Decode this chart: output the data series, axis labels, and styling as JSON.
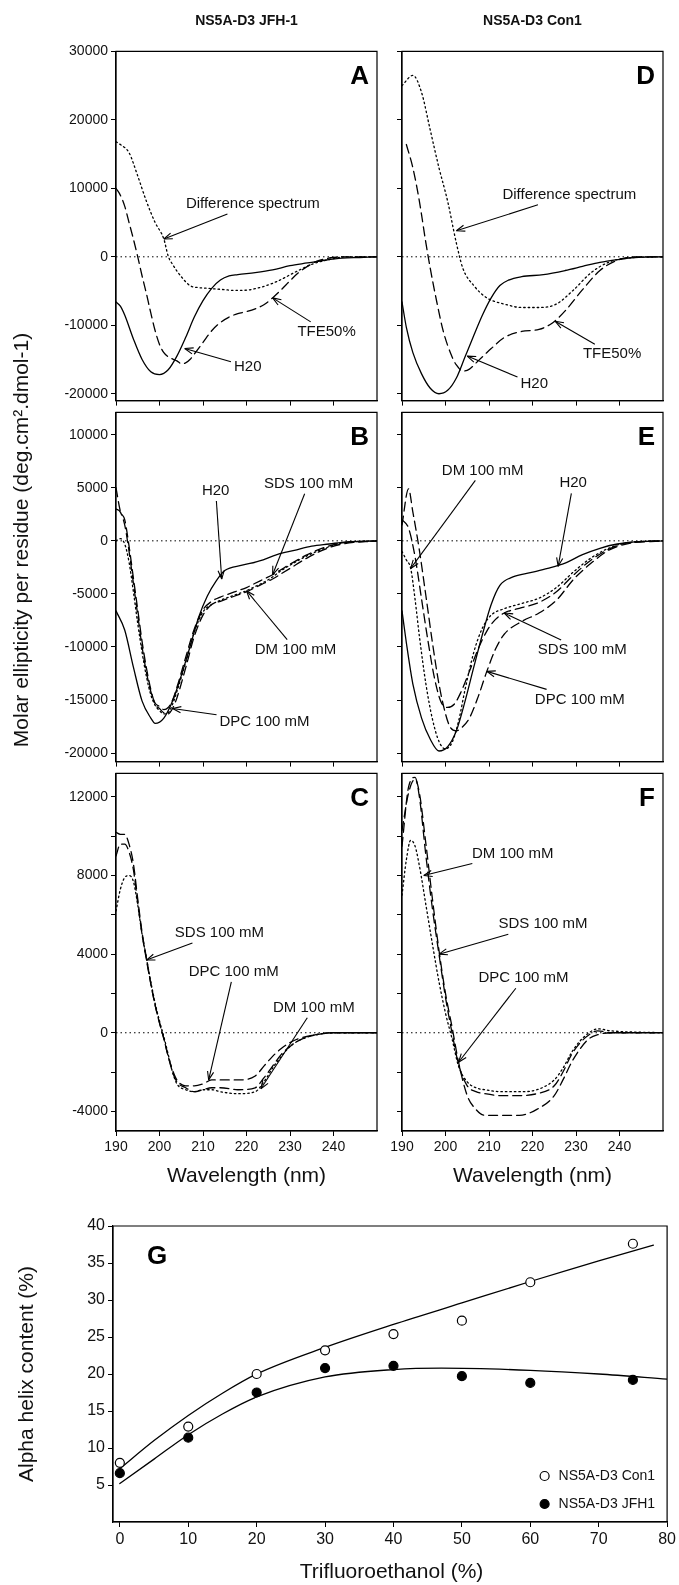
{
  "chart_data": [
    {
      "type": "line",
      "title": "NS5A-D3 JFH-1",
      "xlim": [
        190,
        250
      ],
      "xticks": [
        190,
        200,
        210,
        220,
        230,
        240
      ],
      "ylim": [
        -21000,
        30000
      ],
      "yticks": [
        -20000,
        -10000,
        0,
        10000,
        20000,
        30000
      ],
      "tick_labels": "y",
      "marker": "none",
      "ref_lines": [
        {
          "axis": "y",
          "value": 0,
          "color": "#000000",
          "line_style": "dotted"
        }
      ],
      "annotations": [
        "A",
        {
          "text": "Difference spectrum",
          "x": 201,
          "y": 2600
        },
        {
          "text": "TFE50%",
          "x": 226,
          "y": -6000
        },
        {
          "text": "H20",
          "x": 205.8,
          "y": -13400
        }
      ],
      "series": [
        {
          "color": "#000000",
          "line_style": "solid",
          "x": [
            190,
            191,
            192,
            194,
            196,
            198,
            200,
            202,
            204,
            206,
            208,
            210,
            212,
            214,
            216,
            218,
            222,
            226,
            230,
            234,
            238,
            242,
            246,
            250
          ],
          "values": [
            -6600,
            -7200,
            -8500,
            -12000,
            -15000,
            -16800,
            -17200,
            -16500,
            -14500,
            -11800,
            -8800,
            -6400,
            -4600,
            -3400,
            -2800,
            -2600,
            -2300,
            -1900,
            -1300,
            -900,
            -500,
            -200,
            -100,
            0
          ]
        },
        {
          "color": "#000000",
          "line_style": "dashed",
          "x": [
            190,
            191,
            192,
            193,
            194,
            195,
            196,
            197,
            198,
            199,
            200,
            201,
            202,
            204,
            205,
            206,
            207,
            208,
            210,
            212,
            214,
            216,
            218,
            220,
            222,
            224,
            226,
            228,
            230,
            232,
            234,
            236,
            238,
            240,
            244,
            250
          ],
          "values": [
            10000,
            9000,
            7400,
            5000,
            2600,
            0,
            -2800,
            -5400,
            -8200,
            -10800,
            -12800,
            -14000,
            -14600,
            -15200,
            -15600,
            -15500,
            -15000,
            -14200,
            -12500,
            -10800,
            -9600,
            -8800,
            -8300,
            -8000,
            -7600,
            -7000,
            -6000,
            -4800,
            -3500,
            -2300,
            -1400,
            -700,
            -300,
            -100,
            0,
            0
          ]
        },
        {
          "color": "#000000",
          "line_style": "dotted",
          "x": [
            190,
            191,
            193,
            195,
            197,
            199,
            201,
            202,
            203,
            205,
            207,
            209,
            211,
            213,
            215,
            217,
            219,
            223,
            227,
            231,
            235,
            239,
            243,
            250
          ],
          "values": [
            16800,
            16400,
            15200,
            11800,
            8100,
            5000,
            2600,
            100,
            -1100,
            -2900,
            -4200,
            -4500,
            -4600,
            -4700,
            -4800,
            -4900,
            -4900,
            -4500,
            -3600,
            -2300,
            -1100,
            -400,
            0,
            0
          ]
        }
      ]
    },
    {
      "type": "line",
      "ylabel": "Molar  ellipticity per residue (deg.cm².dmol-1)",
      "xlim": [
        190,
        250
      ],
      "xticks": [
        190,
        200,
        210,
        220,
        230,
        240
      ],
      "ylim": [
        -20800,
        12100
      ],
      "yticks": [
        -20000,
        -15000,
        -10000,
        -5000,
        0,
        5000,
        10000
      ],
      "tick_labels": "y",
      "marker": "none",
      "ref_lines": [
        {
          "axis": "y",
          "value": 0,
          "color": "#000000",
          "line_style": "dotted"
        }
      ],
      "annotations": [
        "B",
        {
          "text": "H20",
          "x": 214.3,
          "y": -3600
        },
        {
          "text": "SDS 100 mM",
          "x": 226,
          "y": -3200
        },
        {
          "text": "DM 100 mM",
          "x": 220,
          "y": -4700
        },
        {
          "text": "DPC 100 mM",
          "x": 203,
          "y": -15800
        }
      ],
      "series": [
        {
          "color": "#000000",
          "line_style": "solid",
          "x": [
            190,
            192,
            194,
            196,
            198,
            199,
            201,
            203,
            205,
            207,
            209,
            211,
            213,
            215,
            219,
            223,
            227,
            231,
            235,
            239,
            243,
            250
          ],
          "values": [
            -6600,
            -8400,
            -11900,
            -15100,
            -16700,
            -17200,
            -16700,
            -15100,
            -12700,
            -10000,
            -7200,
            -5200,
            -3800,
            -2800,
            -2300,
            -1900,
            -1300,
            -900,
            -500,
            -300,
            -100,
            0
          ]
        },
        {
          "color": "#000000",
          "line_style": "dashed",
          "x": [
            190,
            191,
            192,
            193,
            194,
            195,
            196,
            197,
            198,
            199,
            200,
            201,
            202,
            203,
            204,
            206,
            208,
            210,
            212,
            214,
            216,
            218,
            220,
            222,
            224,
            226,
            228,
            230,
            234,
            238,
            242,
            250
          ],
          "values": [
            5000,
            2800,
            2000,
            -500,
            -3500,
            -6500,
            -9500,
            -12000,
            -14000,
            -15400,
            -15800,
            -16200,
            -16300,
            -15800,
            -14800,
            -12000,
            -9000,
            -7000,
            -6000,
            -5700,
            -5400,
            -5100,
            -4800,
            -4400,
            -4000,
            -3600,
            -3100,
            -2600,
            -1600,
            -800,
            -300,
            0
          ]
        },
        {
          "color": "#000000",
          "line_style": "dashed",
          "x": [
            190,
            191,
            192,
            193,
            194,
            195,
            196,
            197,
            198,
            199,
            200,
            201,
            202,
            203,
            204,
            206,
            208,
            210,
            212,
            214,
            216,
            218,
            220,
            222,
            224,
            226,
            228,
            230,
            234,
            238,
            242,
            250
          ],
          "values": [
            3000,
            2700,
            1500,
            -1000,
            -4000,
            -7000,
            -10000,
            -12400,
            -14200,
            -15300,
            -15600,
            -15900,
            -15700,
            -15000,
            -13800,
            -11000,
            -8300,
            -6500,
            -5700,
            -5300,
            -5000,
            -4700,
            -4400,
            -4000,
            -3600,
            -3200,
            -2700,
            -2200,
            -1300,
            -600,
            -200,
            0
          ]
        },
        {
          "color": "#000000",
          "line_style": "dotted",
          "x": [
            190,
            191,
            192,
            193,
            194,
            195,
            196,
            197,
            198,
            199,
            200,
            201,
            202,
            203,
            204,
            206,
            208,
            210,
            212,
            214,
            216,
            218,
            220,
            222,
            224,
            226,
            228,
            230,
            234,
            238,
            242,
            250
          ],
          "values": [
            0,
            200,
            -300,
            -2000,
            -4800,
            -7800,
            -10500,
            -12800,
            -14500,
            -15500,
            -16000,
            -16300,
            -16200,
            -15400,
            -14200,
            -11500,
            -8600,
            -6700,
            -6000,
            -5600,
            -5300,
            -5000,
            -4700,
            -4300,
            -3900,
            -3400,
            -2800,
            -2300,
            -1400,
            -700,
            -200,
            0
          ]
        }
      ]
    },
    {
      "type": "line",
      "xlabel": "Wavelength (nm)",
      "xlim": [
        190,
        250
      ],
      "xticks": [
        190,
        200,
        210,
        220,
        230,
        240
      ],
      "ylim": [
        -5000,
        13200
      ],
      "yticks": [
        -4000,
        {
          "value": -2000,
          "label": null
        },
        0,
        {
          "value": 2000,
          "label": null
        },
        4000,
        {
          "value": 6000,
          "label": null
        },
        8000,
        {
          "value": 10000,
          "label": null
        },
        12000
      ],
      "marker": "none",
      "ref_lines": [
        {
          "axis": "y",
          "value": 0,
          "color": "#000000",
          "line_style": "dotted"
        }
      ],
      "annotations": [
        "C",
        {
          "text": "SDS 100 mM",
          "x": 197,
          "y": 3700
        },
        {
          "text": "DPC 100 mM",
          "x": 211.3,
          "y": -2400
        },
        {
          "text": "DM 100 mM",
          "x": 223.3,
          "y": -2850
        }
      ],
      "series": [
        {
          "color": "#000000",
          "line_style": "dashed",
          "x": [
            190,
            191,
            192,
            193,
            194,
            195,
            196,
            197,
            198,
            199,
            200,
            201,
            202,
            203,
            204,
            206,
            208,
            210,
            212,
            214,
            218,
            222,
            224,
            226,
            228,
            230,
            232,
            236,
            240,
            250
          ],
          "values": [
            10200,
            10100,
            10100,
            9600,
            8600,
            6800,
            5100,
            3800,
            2500,
            1400,
            500,
            -300,
            -1200,
            -1900,
            -2400,
            -2700,
            -2700,
            -2600,
            -2400,
            -2400,
            -2400,
            -2200,
            -1700,
            -1200,
            -800,
            -500,
            -300,
            -100,
            0,
            0
          ]
        },
        {
          "color": "#000000",
          "line_style": "dashed",
          "x": [
            190,
            191,
            192,
            193,
            194,
            195,
            196,
            197,
            198,
            199,
            200,
            201,
            202,
            203,
            204,
            206,
            208,
            210,
            212,
            214,
            218,
            222,
            224,
            226,
            228,
            230,
            232,
            236,
            240,
            250
          ],
          "values": [
            9000,
            9600,
            9600,
            9200,
            8300,
            6600,
            5000,
            3700,
            2500,
            1400,
            500,
            -300,
            -1200,
            -2000,
            -2500,
            -2800,
            -3000,
            -2900,
            -2800,
            -2800,
            -2900,
            -2800,
            -2300,
            -1700,
            -1100,
            -700,
            -400,
            -100,
            0,
            0
          ]
        },
        {
          "color": "#000000",
          "line_style": "dotted",
          "x": [
            190,
            191,
            192,
            193,
            194,
            195,
            196,
            197,
            198,
            199,
            200,
            201,
            202,
            203,
            204,
            206,
            208,
            210,
            212,
            214,
            218,
            222,
            224,
            226,
            228,
            230,
            232,
            236,
            240,
            250
          ],
          "values": [
            6200,
            7300,
            7900,
            8000,
            7700,
            6500,
            5000,
            3800,
            2600,
            1500,
            600,
            -200,
            -1100,
            -2000,
            -2600,
            -2900,
            -3000,
            -2900,
            -2900,
            -3000,
            -3100,
            -3000,
            -2500,
            -1800,
            -1200,
            -700,
            -400,
            -100,
            0,
            0
          ]
        }
      ]
    },
    {
      "type": "line",
      "title": "NS5A-D3 Con1",
      "xlim": [
        190,
        250
      ],
      "xticks": [
        190,
        200,
        210,
        220,
        230,
        240
      ],
      "ylim": [
        -21000,
        30000
      ],
      "yticks": [
        -20000,
        -10000,
        0,
        10000,
        20000,
        30000
      ],
      "tick_labels": false,
      "marker": "none",
      "ref_lines": [
        {
          "axis": "y",
          "value": 0,
          "color": "#000000",
          "line_style": "dotted"
        }
      ],
      "annotations": [
        "D",
        {
          "text": "Difference spectrum",
          "x": 202.5,
          "y": 3800
        },
        {
          "text": "TFE50%",
          "x": 225.2,
          "y": -9400
        },
        {
          "text": "H20",
          "x": 205,
          "y": -14500
        }
      ],
      "series": [
        {
          "color": "#000000",
          "line_style": "solid",
          "x": [
            190,
            191,
            192.5,
            194.5,
            196.5,
            198.5,
            200.5,
            202.5,
            204.5,
            206.5,
            208.5,
            210.5,
            212.5,
            214.5,
            217.5,
            222.5,
            227.5,
            231.5,
            235.5,
            239.5,
            243.5,
            250
          ],
          "values": [
            -6600,
            -10300,
            -14000,
            -17100,
            -19200,
            -20000,
            -19500,
            -17700,
            -14600,
            -11500,
            -8500,
            -6000,
            -4200,
            -3400,
            -2900,
            -2600,
            -2000,
            -1400,
            -800,
            -400,
            -100,
            0
          ]
        },
        {
          "color": "#000000",
          "line_style": "dashed",
          "x": [
            191,
            192.5,
            194,
            195.5,
            196.5,
            198,
            199.5,
            201.5,
            202.5,
            204,
            205.5,
            207.5,
            210.5,
            213.5,
            217.5,
            221.5,
            224.5,
            227.5,
            231.5,
            235.5,
            239.5,
            243.5,
            250
          ],
          "values": [
            16400,
            13000,
            8100,
            2000,
            -1700,
            -6600,
            -10900,
            -14600,
            -15800,
            -16700,
            -16400,
            -15200,
            -13400,
            -11800,
            -10900,
            -10600,
            -9700,
            -7900,
            -4800,
            -2000,
            -500,
            0,
            0
          ]
        },
        {
          "color": "#000000",
          "line_style": "dotted",
          "x": [
            190,
            192.5,
            194.5,
            196.5,
            198.5,
            200.5,
            202.5,
            204,
            206.5,
            209.5,
            213.5,
            217.5,
            221.5,
            225.5,
            229.5,
            233.5,
            237.5,
            241.5,
            250
          ],
          "values": [
            25000,
            26500,
            24000,
            18500,
            13000,
            8100,
            2000,
            -1700,
            -4200,
            -6000,
            -6900,
            -7400,
            -7400,
            -6900,
            -4800,
            -2300,
            -800,
            -200,
            0
          ]
        }
      ]
    },
    {
      "type": "line",
      "xlim": [
        190,
        250
      ],
      "xticks": [
        190,
        200,
        210,
        220,
        230,
        240
      ],
      "ylim": [
        -20800,
        12100
      ],
      "yticks": [
        -20000,
        -15000,
        -10000,
        -5000,
        0,
        5000,
        10000
      ],
      "tick_labels": false,
      "marker": "none",
      "ref_lines": [
        {
          "axis": "y",
          "value": 0,
          "color": "#000000",
          "line_style": "dotted"
        }
      ],
      "annotations": [
        "E",
        {
          "text": "DM 100 mM",
          "x": 192,
          "y": -2600
        },
        {
          "text": "H20",
          "x": 225.9,
          "y": -2400
        },
        {
          "text": "SDS 100 mM",
          "x": 213.5,
          "y": -6800
        },
        {
          "text": "DPC 100 mM",
          "x": 209.5,
          "y": -12300
        }
      ],
      "series": [
        {
          "color": "#000000",
          "line_style": "solid",
          "x": [
            190,
            191,
            192.5,
            194.5,
            196.5,
            198.5,
            200.5,
            202.5,
            204.5,
            206.5,
            208.5,
            210.5,
            212.5,
            215.5,
            219.5,
            223.5,
            227.5,
            231.5,
            235.5,
            239.5,
            243.5,
            250
          ],
          "values": [
            -6600,
            -9600,
            -13500,
            -16700,
            -18700,
            -19800,
            -19400,
            -17900,
            -15100,
            -11900,
            -8800,
            -6000,
            -4200,
            -3400,
            -3000,
            -2600,
            -2100,
            -1300,
            -700,
            -300,
            -100,
            0
          ]
        },
        {
          "color": "#000000",
          "line_style": "dashed",
          "x": [
            190,
            191.5,
            192.5,
            194,
            195.5,
            197,
            198.5,
            200,
            201,
            202.5,
            204,
            205.5,
            207.5,
            209.5,
            211.5,
            213.5,
            217.5,
            221.5,
            225.5,
            229.5,
            233.5,
            237.5,
            241.5,
            250
          ],
          "values": [
            1500,
            4900,
            2700,
            -900,
            -5200,
            -9600,
            -13500,
            -16300,
            -17500,
            -17900,
            -17500,
            -16700,
            -14700,
            -12300,
            -10200,
            -8800,
            -7600,
            -6800,
            -5600,
            -3600,
            -2100,
            -900,
            -300,
            0
          ]
        },
        {
          "color": "#000000",
          "line_style": "dashed",
          "x": [
            190,
            191.5,
            193,
            194.5,
            196,
            197.5,
            199,
            200.5,
            202,
            203.5,
            205.5,
            207.5,
            209.5,
            211.5,
            213.5,
            217.5,
            221.5,
            225.5,
            229.5,
            233.5,
            237.5,
            241.5,
            250
          ],
          "values": [
            2000,
            1200,
            -1500,
            -5500,
            -9500,
            -13000,
            -15200,
            -15700,
            -15400,
            -14300,
            -12300,
            -10200,
            -8500,
            -7400,
            -6800,
            -6300,
            -5800,
            -4800,
            -3200,
            -1800,
            -800,
            -200,
            0
          ]
        },
        {
          "color": "#000000",
          "line_style": "dotted",
          "x": [
            190,
            191,
            192,
            193,
            194,
            195.5,
            197,
            198.5,
            200,
            201.5,
            203,
            204.5,
            206.5,
            208.5,
            210.5,
            213.5,
            217.5,
            221.5,
            225.5,
            229.5,
            233.5,
            237.5,
            241.5,
            250
          ],
          "values": [
            -1000,
            -1800,
            -2600,
            -5500,
            -9000,
            -13500,
            -16800,
            -18900,
            -19600,
            -19000,
            -17000,
            -14000,
            -10500,
            -8200,
            -7000,
            -6400,
            -5900,
            -5400,
            -4400,
            -2900,
            -1600,
            -700,
            -200,
            0
          ]
        }
      ]
    },
    {
      "type": "line",
      "xlabel": "Wavelength (nm)",
      "xlim": [
        190,
        250
      ],
      "xticks": [
        190,
        200,
        210,
        220,
        230,
        240
      ],
      "ylim": [
        -5000,
        13200
      ],
      "yticks": [
        {
          "value": -4000,
          "label": null
        },
        {
          "value": -2000,
          "label": null
        },
        {
          "value": 0,
          "label": null
        },
        {
          "value": 2000,
          "label": null
        },
        {
          "value": 4000,
          "label": null
        },
        {
          "value": 6000,
          "label": null
        },
        {
          "value": 8000,
          "label": null
        },
        {
          "value": 10000,
          "label": null
        },
        {
          "value": 12000,
          "label": null
        }
      ],
      "tick_labels": "x",
      "marker": "none",
      "ref_lines": [
        {
          "axis": "y",
          "value": 0,
          "color": "#000000",
          "line_style": "dotted"
        }
      ],
      "annotations": [
        "F",
        {
          "text": "DM 100 mM",
          "x": 195,
          "y": 8000
        },
        {
          "text": "SDS 100 mM",
          "x": 198.5,
          "y": 4000
        },
        {
          "text": "DPC 100 mM",
          "x": 203,
          "y": -1500
        }
      ],
      "series": [
        {
          "color": "#000000",
          "line_style": "dashed",
          "x": [
            190,
            191.5,
            193,
            194,
            195.5,
            197,
            198.5,
            200,
            201.5,
            203,
            205,
            207,
            209,
            213,
            217,
            221,
            225,
            227,
            229,
            231,
            233,
            235,
            238,
            250
          ],
          "values": [
            10300,
            12200,
            12900,
            12200,
            9600,
            6800,
            4200,
            2000,
            300,
            -1500,
            -3200,
            -3900,
            -4200,
            -4200,
            -4200,
            -3900,
            -3200,
            -2400,
            -1500,
            -800,
            -300,
            -100,
            0,
            0
          ]
        },
        {
          "color": "#000000",
          "line_style": "dashed",
          "x": [
            190,
            191.5,
            193,
            194,
            195.5,
            197,
            198.5,
            200,
            201.5,
            203,
            205,
            207,
            209,
            213,
            217,
            221,
            225,
            227,
            229,
            231,
            233,
            235,
            238,
            250
          ],
          "values": [
            9500,
            12500,
            13000,
            12000,
            9000,
            6300,
            4000,
            1800,
            0,
            -1600,
            -2700,
            -3000,
            -3100,
            -3200,
            -3200,
            -3100,
            -2700,
            -2000,
            -1100,
            -500,
            -100,
            100,
            0,
            0
          ]
        },
        {
          "color": "#000000",
          "line_style": "dotted",
          "x": [
            190,
            191,
            192,
            193,
            194,
            195.5,
            197,
            198.5,
            200,
            201.5,
            203,
            205,
            207,
            209,
            213,
            217,
            221,
            225,
            227,
            229,
            231,
            233,
            235,
            238,
            250
          ],
          "values": [
            7000,
            8800,
            9800,
            9500,
            8500,
            6500,
            4500,
            2600,
            1000,
            -300,
            -1700,
            -2500,
            -2800,
            -2900,
            -3000,
            -3000,
            -2900,
            -2400,
            -1800,
            -1000,
            -400,
            0,
            200,
            100,
            0
          ]
        }
      ]
    },
    {
      "type": "scatter",
      "xlabel": "Trifluoroethanol (%)",
      "ylabel": "Alpha helix content (%)",
      "xlim": [
        -1,
        80
      ],
      "xticks": [
        0,
        10,
        20,
        30,
        40,
        50,
        60,
        70,
        80
      ],
      "ylim": [
        0,
        40
      ],
      "yticks": [
        5,
        10,
        15,
        20,
        25,
        30,
        35,
        40
      ],
      "marker": "circle",
      "legend": "bottom right",
      "annotations": [
        "G"
      ],
      "series": [
        {
          "name": "NS5A-D3 Con1",
          "color": "#ffffff",
          "x": [
            0,
            10,
            20,
            30,
            40,
            50,
            60,
            75
          ],
          "values": [
            8.0,
            12.9,
            20.0,
            23.2,
            25.4,
            27.2,
            32.4,
            37.6
          ]
        },
        {
          "name": "NS5A-D3 JFH1",
          "color": "#000000",
          "x": [
            0,
            10,
            20,
            30,
            40,
            50,
            60,
            75
          ],
          "values": [
            6.6,
            11.4,
            17.5,
            20.8,
            21.1,
            19.7,
            18.8,
            19.2
          ]
        },
        {
          "type": "line",
          "marker": "none",
          "line_style": "solid",
          "color": "#000000",
          "x": [
            0,
            5,
            10,
            15,
            20,
            30,
            40,
            50,
            60,
            70,
            78
          ],
          "values": [
            7.2,
            11.0,
            14.4,
            17.4,
            20.0,
            23.6,
            26.7,
            29.6,
            32.5,
            35.3,
            37.4
          ]
        },
        {
          "type": "line",
          "marker": "none",
          "line_style": "solid",
          "color": "#000000",
          "x": [
            0,
            5,
            10,
            15,
            20,
            30,
            40,
            47,
            60,
            70,
            80
          ],
          "values": [
            5.2,
            8.5,
            11.8,
            14.6,
            16.9,
            19.6,
            20.6,
            20.8,
            20.5,
            20.0,
            19.3
          ]
        }
      ]
    }
  ]
}
